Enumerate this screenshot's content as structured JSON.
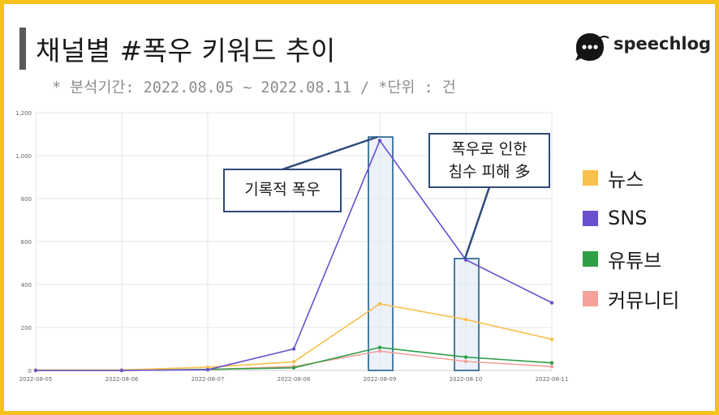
{
  "title": "채널별 #폭우 키워드 추이",
  "subtitle": "* 분석기간: 2022.08.05 ~ 2022.08.11 / *단위 : 건",
  "logo_text": "speechlog",
  "colors": {
    "frame": "#f7c21b",
    "news": "#f8c04c",
    "sns": "#6a4fcf",
    "youtube": "#2f9e44",
    "community": "#f4a19a"
  },
  "callouts": [
    {
      "text": "기록적 폭우"
    },
    {
      "line1": "폭우로 인한",
      "line2": "침수 피해 多"
    }
  ],
  "chart_data": {
    "type": "line",
    "x": [
      "2022-08-05",
      "2022-08-06",
      "2022-08-07",
      "2022-08-08",
      "2022-08-09",
      "2022-08-10",
      "2022-08-11"
    ],
    "yticks": [
      "0",
      "200",
      "400",
      "600",
      "800",
      "1,000",
      "1,200"
    ],
    "ylim": [
      0,
      1200
    ],
    "grid": true,
    "legend_position": "right",
    "series": [
      {
        "name": "뉴스",
        "color": "#f8c04c",
        "values": [
          2,
          2,
          15,
          40,
          310,
          237,
          145
        ]
      },
      {
        "name": "SNS",
        "color": "#6a4fcf",
        "values": [
          0,
          0,
          3,
          100,
          1070,
          515,
          315
        ]
      },
      {
        "name": "유튜브",
        "color": "#2f9e44",
        "values": [
          0,
          0,
          5,
          12,
          107,
          62,
          35
        ]
      },
      {
        "name": "커뮤니티",
        "color": "#f4a19a",
        "values": [
          0,
          0,
          4,
          18,
          90,
          42,
          18
        ]
      }
    ]
  }
}
